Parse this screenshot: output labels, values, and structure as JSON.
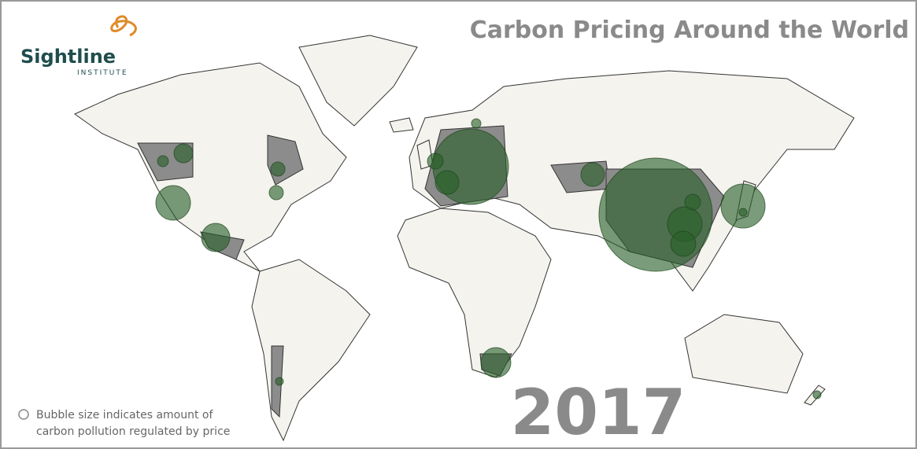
{
  "header": {
    "logo_name": "Sightline",
    "logo_sub": "INSTITUTE",
    "title": "Carbon Pricing Around the World"
  },
  "year": "2017",
  "legend": {
    "line1": "Bubble size indicates amount of",
    "line2": "carbon pollution regulated by price"
  }
}
